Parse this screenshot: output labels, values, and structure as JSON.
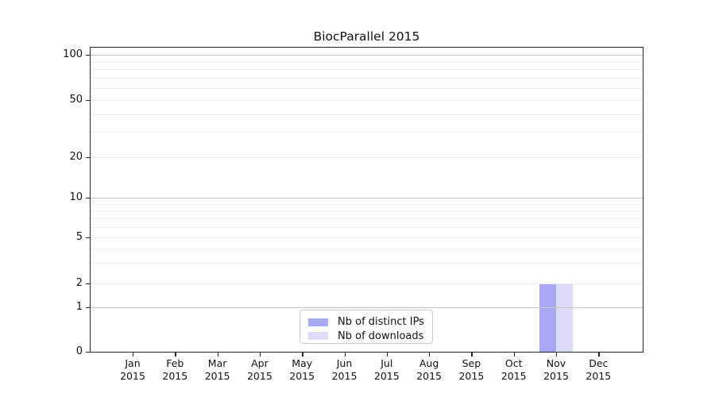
{
  "page": {
    "background": "#ffffff"
  },
  "chart": {
    "title": "BiocParallel 2015",
    "legend": {
      "items": [
        {
          "label": "Nb of distinct IPs",
          "color": "#a8a8f5"
        },
        {
          "label": "Nb of downloads",
          "color": "#dcdcf8"
        }
      ]
    }
  },
  "chart_data": {
    "type": "bar",
    "title": "BiocParallel 2015",
    "categories": [
      "Jan 2015",
      "Feb 2015",
      "Mar 2015",
      "Apr 2015",
      "May 2015",
      "Jun 2015",
      "Jul 2015",
      "Aug 2015",
      "Sep 2015",
      "Oct 2015",
      "Nov 2015",
      "Dec 2015"
    ],
    "series": [
      {
        "name": "Nb of distinct IPs",
        "color": "#a8a8f5",
        "values": [
          0,
          0,
          0,
          0,
          0,
          0,
          0,
          0,
          0,
          0,
          2,
          0
        ]
      },
      {
        "name": "Nb of downloads",
        "color": "#dcdcf8",
        "values": [
          0,
          0,
          0,
          0,
          0,
          0,
          0,
          0,
          0,
          0,
          2,
          0
        ]
      }
    ],
    "xlabel": "",
    "ylabel": "",
    "y_ticks": [
      0,
      1,
      2,
      5,
      10,
      20,
      50,
      100
    ],
    "y_scale": "log-like, 0 pinned to baseline",
    "ylim": [
      0,
      110
    ],
    "major_grid_values": [
      1,
      10,
      100
    ],
    "minor_grid_values": [
      2,
      3,
      4,
      5,
      6,
      7,
      8,
      9,
      20,
      30,
      40,
      50,
      60,
      70,
      80,
      90
    ],
    "grid": "horizontal only, minor + major",
    "legend_position": "bottom-center inside plot"
  }
}
